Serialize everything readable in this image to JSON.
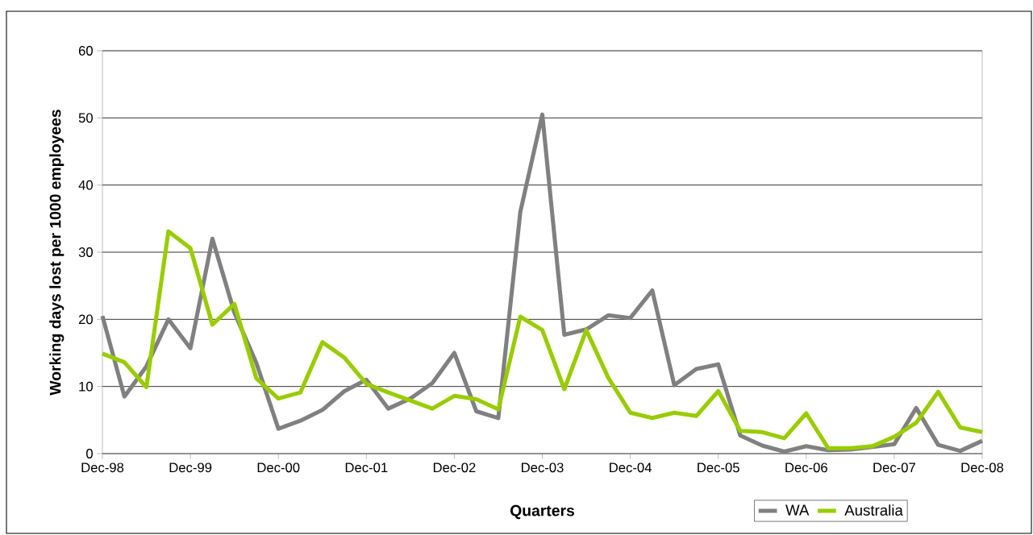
{
  "chart_data": {
    "type": "line",
    "xlabel": "Quarters",
    "ylabel": "Working days lost per 1000 employees",
    "categories": [
      "Dec-98",
      null,
      null,
      null,
      "Dec-99",
      null,
      null,
      null,
      "Dec-00",
      null,
      null,
      null,
      "Dec-01",
      null,
      null,
      null,
      "Dec-02",
      null,
      null,
      null,
      "Dec-03",
      null,
      null,
      null,
      "Dec-04",
      null,
      null,
      null,
      "Dec-05",
      null,
      null,
      null,
      "Dec-06",
      null,
      null,
      null,
      "Dec-07",
      null,
      null,
      null,
      "Dec-08"
    ],
    "series": [
      {
        "name": "WA",
        "color": "#808080",
        "values": [
          20.5,
          8.5,
          13,
          20,
          15.7,
          32,
          21,
          13.5,
          3.7,
          4.9,
          6.5,
          9.3,
          11,
          6.7,
          8.2,
          10.5,
          15,
          6.3,
          5.3,
          36,
          50.5,
          17.7,
          18.5,
          20.6,
          20.2,
          24.3,
          10.2,
          12.6,
          13.3,
          2.7,
          1.2,
          0.3,
          1.1,
          0.5,
          0.6,
          1.0,
          1.4,
          6.8,
          1.3,
          0.4,
          1.9
        ]
      },
      {
        "name": "Australia",
        "color": "#99cc00",
        "values": [
          14.9,
          13.6,
          9.9,
          33.1,
          30.6,
          19.2,
          22.3,
          11.2,
          8.2,
          9.1,
          16.6,
          14.3,
          10.4,
          9.1,
          7.9,
          6.7,
          8.6,
          8.1,
          6.6,
          20.4,
          18.4,
          9.6,
          18.4,
          11.3,
          6.1,
          5.3,
          6.1,
          5.6,
          9.3,
          3.4,
          3.2,
          2.3,
          6.0,
          0.8,
          0.8,
          1.1,
          2.5,
          4.6,
          9.2,
          3.9,
          3.2
        ]
      }
    ],
    "ylim": [
      0,
      60
    ],
    "yticks": [
      0,
      10,
      20,
      30,
      40,
      50,
      60
    ],
    "grid": "y",
    "legend": "bottom right",
    "marker": "none",
    "line_style": "solid"
  }
}
